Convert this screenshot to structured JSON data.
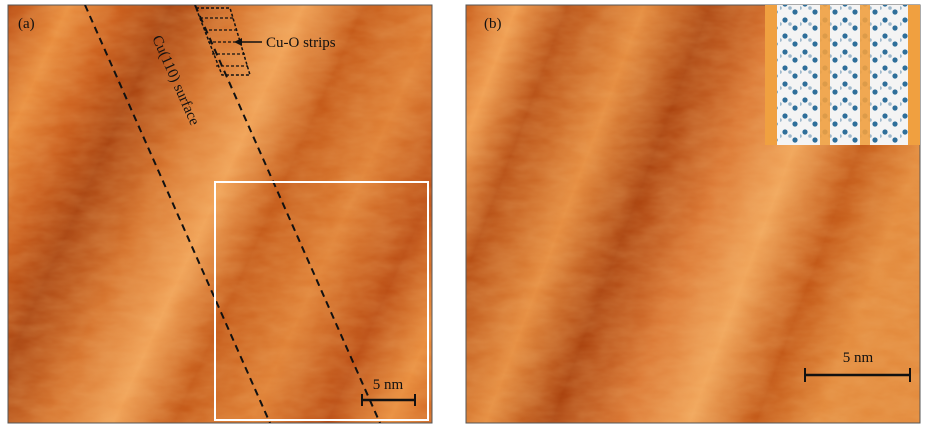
{
  "panels": [
    {
      "label": "(a)",
      "annotations": {
        "strips": "Cu-O strips",
        "surface": "Cu(110) surface"
      },
      "scale_bar": "5 nm"
    },
    {
      "label": "(b)",
      "scale_bar": "5 nm"
    }
  ]
}
